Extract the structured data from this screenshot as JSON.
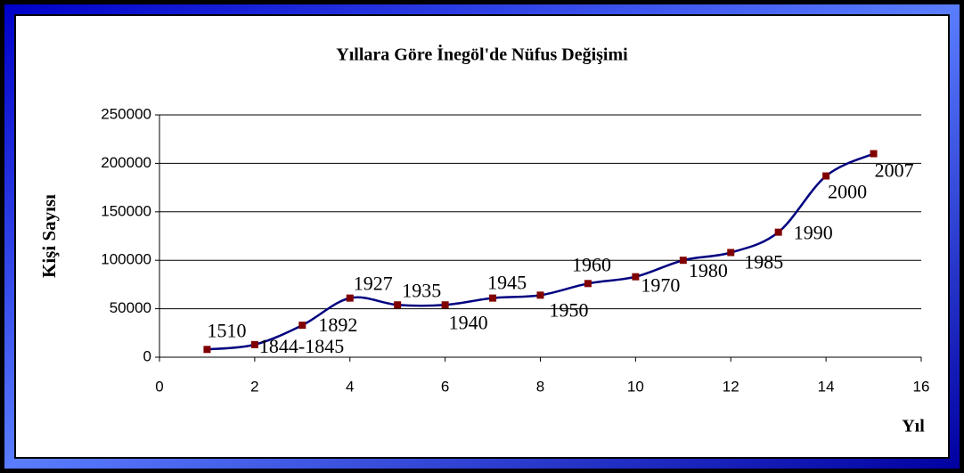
{
  "chart_data": {
    "type": "line",
    "title": "Yıllara Göre İnegöl'de Nüfus Değişimi",
    "x_label": "Yıl",
    "y_label": "Kişi Sayısı",
    "x": [
      1,
      2,
      3,
      4,
      5,
      6,
      7,
      8,
      9,
      10,
      11,
      12,
      13,
      14,
      15
    ],
    "series": [
      {
        "values": [
          8000,
          13000,
          33000,
          61000,
          54000,
          54000,
          61000,
          64000,
          76000,
          83000,
          100000,
          108000,
          129000,
          187000,
          210000
        ],
        "color": "#000080",
        "marker_color": "#800000"
      }
    ],
    "point_labels": [
      "1510",
      "1844-1845",
      "1892",
      "1927",
      "1935",
      "1940",
      "1945",
      "1950",
      "1960",
      "1970",
      "1980",
      "1985",
      "1990",
      "2000",
      "2007"
    ],
    "xlim": [
      0,
      16
    ],
    "xticks": [
      0,
      2,
      4,
      6,
      8,
      10,
      12,
      14,
      16
    ],
    "ylim": [
      0,
      250000
    ],
    "yticks": [
      0,
      50000,
      100000,
      150000,
      200000,
      250000
    ],
    "grid": true
  }
}
